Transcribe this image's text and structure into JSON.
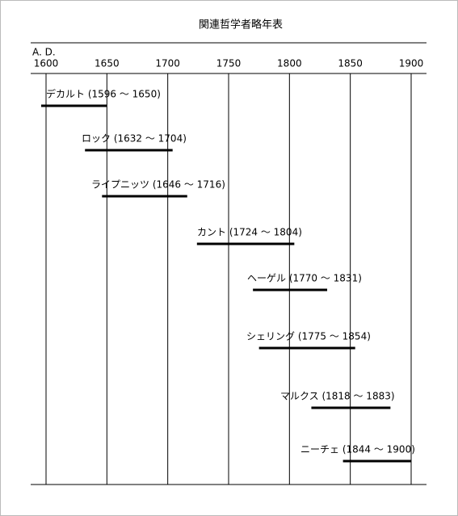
{
  "chart_data": {
    "type": "timeline",
    "title": "関連哲学者略年表",
    "x_label": "A. D.",
    "xlim": [
      1600,
      1900
    ],
    "xticks": [
      1600,
      1650,
      1700,
      1750,
      1800,
      1850,
      1900
    ],
    "grid": true,
    "color": "#000000",
    "labels": [
      "デカルト (1596 ～ 1650)",
      "ロック (1632 ～ 1704)",
      "ライプニッツ (1646 ～ 1716)",
      "カント (1724 ～ 1804)",
      "ヘーゲル (1770 ～ 1831)",
      "シェリング (1775 ～ 1854)",
      "マルクス (1818 ～ 1883)",
      "ニーチェ (1844 ～ 1900)"
    ],
    "start": [
      1596,
      1632,
      1646,
      1724,
      1770,
      1775,
      1818,
      1844
    ],
    "end": [
      1650,
      1704,
      1716,
      1804,
      1831,
      1854,
      1883,
      1900
    ]
  }
}
